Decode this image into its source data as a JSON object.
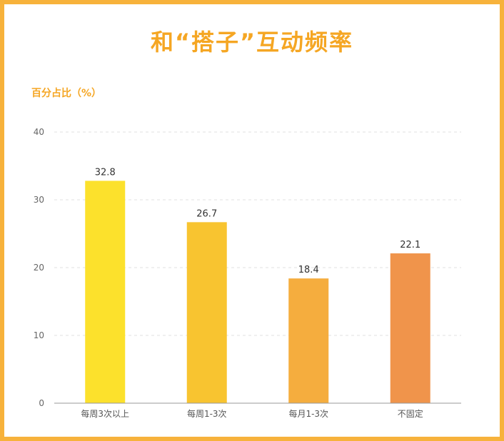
{
  "chart_data": {
    "type": "bar",
    "title": "和“搭子”互动频率",
    "ylabel": "百分占比（%）",
    "xlabel": "",
    "categories": [
      "每周3次以上",
      "每周1-3次",
      "每月1-3次",
      "不固定"
    ],
    "values": [
      32.8,
      26.7,
      18.4,
      22.1
    ],
    "value_labels": [
      "32.8",
      "26.7",
      "18.4",
      "22.1"
    ],
    "bar_colors": [
      "#fce12c",
      "#f8c430",
      "#f5ad3e",
      "#f0944b"
    ],
    "ylim": [
      0,
      40
    ],
    "yticks": [
      0,
      10,
      20,
      30,
      40
    ],
    "grid": true,
    "legend": "none"
  },
  "colors": {
    "border": "#f7b23b",
    "title": "#f5a623",
    "grid": "#e2e2e2",
    "axis": "#999999"
  }
}
